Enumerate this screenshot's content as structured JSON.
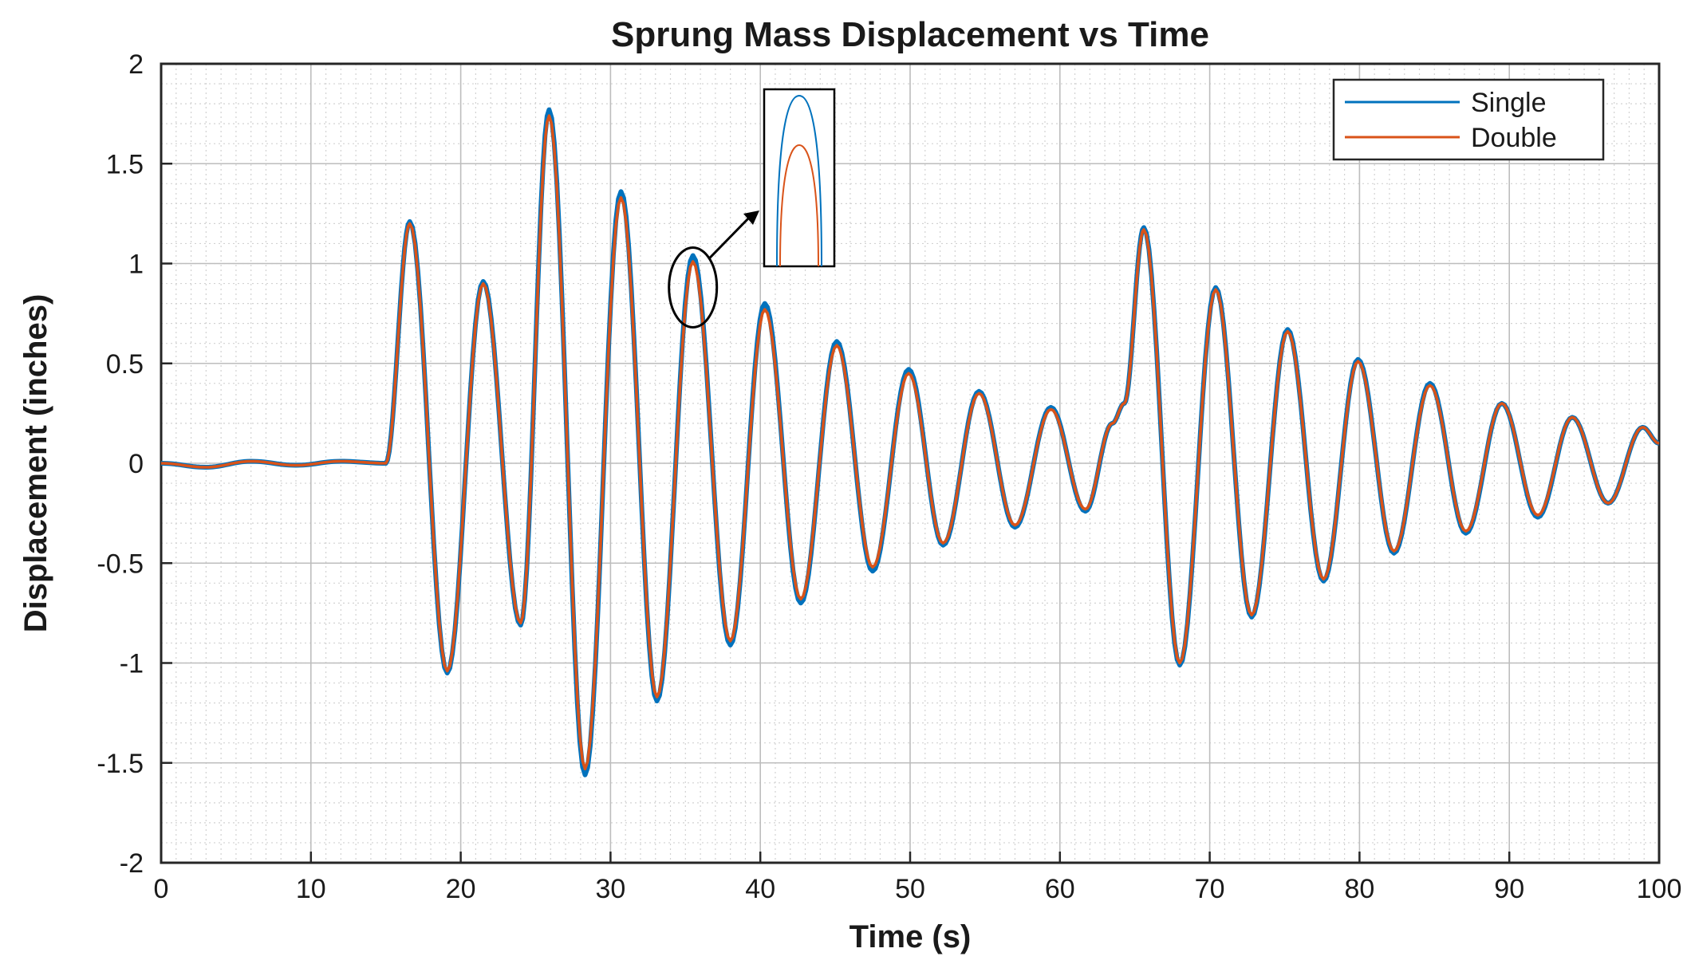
{
  "chart_data": {
    "type": "line",
    "title": "Sprung Mass Displacement vs Time",
    "xlabel": "Time (s)",
    "ylabel": "Displacement (inches)",
    "xlim": [
      0,
      100
    ],
    "ylim": [
      -2,
      2
    ],
    "xticks": [
      0,
      10,
      20,
      30,
      40,
      50,
      60,
      70,
      80,
      90,
      100
    ],
    "xtick_labels": [
      "0",
      "10",
      "20",
      "30",
      "40",
      "50",
      "60",
      "70",
      "80",
      "90",
      "100"
    ],
    "yticks": [
      -2,
      -1.5,
      -1,
      -0.5,
      0,
      0.5,
      1,
      1.5,
      2
    ],
    "ytick_labels": [
      "-2",
      "-1.5",
      "-1",
      "-0.5",
      "0",
      "0.5",
      "1",
      "1.5",
      "2"
    ],
    "grid": true,
    "minor_grid": true,
    "legend_location": "top-right",
    "series": [
      {
        "name": "Single",
        "color": "#0072BD",
        "keypoints": [
          [
            0,
            0
          ],
          [
            3,
            -0.02
          ],
          [
            6,
            0.01
          ],
          [
            9,
            -0.01
          ],
          [
            12,
            0.01
          ],
          [
            15,
            0
          ],
          [
            16.6,
            1.21
          ],
          [
            19.1,
            -1.05
          ],
          [
            21.5,
            0.91
          ],
          [
            24,
            -0.81
          ],
          [
            25.9,
            1.77
          ],
          [
            28.3,
            -1.56
          ],
          [
            30.7,
            1.36
          ],
          [
            33.1,
            -1.19
          ],
          [
            35.5,
            1.04
          ],
          [
            38,
            -0.91
          ],
          [
            40.3,
            0.8
          ],
          [
            42.7,
            -0.7
          ],
          [
            45.1,
            0.61
          ],
          [
            47.5,
            -0.54
          ],
          [
            49.9,
            0.47
          ],
          [
            52.2,
            -0.41
          ],
          [
            54.6,
            0.36
          ],
          [
            57,
            -0.32
          ],
          [
            59.4,
            0.28
          ],
          [
            61.7,
            -0.24
          ],
          [
            63.5,
            0.2
          ],
          [
            64.3,
            0.3
          ],
          [
            65.6,
            1.18
          ],
          [
            68,
            -1.01
          ],
          [
            70.4,
            0.88
          ],
          [
            72.8,
            -0.77
          ],
          [
            75.2,
            0.67
          ],
          [
            77.6,
            -0.59
          ],
          [
            79.9,
            0.52
          ],
          [
            82.3,
            -0.45
          ],
          [
            84.7,
            0.4
          ],
          [
            87.1,
            -0.35
          ],
          [
            89.5,
            0.3
          ],
          [
            91.9,
            -0.27
          ],
          [
            94.2,
            0.23
          ],
          [
            96.6,
            -0.2
          ],
          [
            98.9,
            0.18
          ],
          [
            100,
            0.1
          ]
        ]
      },
      {
        "name": "Double",
        "color": "#D95319",
        "keypoints": [
          [
            0,
            0
          ],
          [
            3,
            -0.02
          ],
          [
            6,
            0.01
          ],
          [
            9,
            -0.01
          ],
          [
            12,
            0.01
          ],
          [
            15,
            0
          ],
          [
            16.6,
            1.2
          ],
          [
            19.1,
            -1.04
          ],
          [
            21.5,
            0.9
          ],
          [
            24,
            -0.8
          ],
          [
            25.9,
            1.74
          ],
          [
            28.3,
            -1.53
          ],
          [
            30.7,
            1.33
          ],
          [
            33.1,
            -1.17
          ],
          [
            35.5,
            1.01
          ],
          [
            38,
            -0.89
          ],
          [
            40.3,
            0.77
          ],
          [
            42.7,
            -0.68
          ],
          [
            45.1,
            0.59
          ],
          [
            47.5,
            -0.52
          ],
          [
            49.9,
            0.45
          ],
          [
            52.2,
            -0.4
          ],
          [
            54.6,
            0.35
          ],
          [
            57,
            -0.31
          ],
          [
            59.4,
            0.27
          ],
          [
            61.7,
            -0.23
          ],
          [
            63.5,
            0.2
          ],
          [
            64.3,
            0.3
          ],
          [
            65.6,
            1.17
          ],
          [
            68,
            -1.0
          ],
          [
            70.4,
            0.87
          ],
          [
            72.8,
            -0.76
          ],
          [
            75.2,
            0.66
          ],
          [
            77.6,
            -0.58
          ],
          [
            79.9,
            0.51
          ],
          [
            82.3,
            -0.44
          ],
          [
            84.7,
            0.39
          ],
          [
            87.1,
            -0.34
          ],
          [
            89.5,
            0.3
          ],
          [
            91.9,
            -0.26
          ],
          [
            94.2,
            0.23
          ],
          [
            96.6,
            -0.2
          ],
          [
            98.9,
            0.18
          ],
          [
            100,
            0.1
          ]
        ]
      }
    ],
    "annotations": [
      {
        "type": "ellipse",
        "label": "highlighted peak",
        "x": 35.5,
        "y": 0.88
      },
      {
        "type": "inset",
        "label": "zoomed peak comparison (Single above Double)"
      }
    ]
  }
}
